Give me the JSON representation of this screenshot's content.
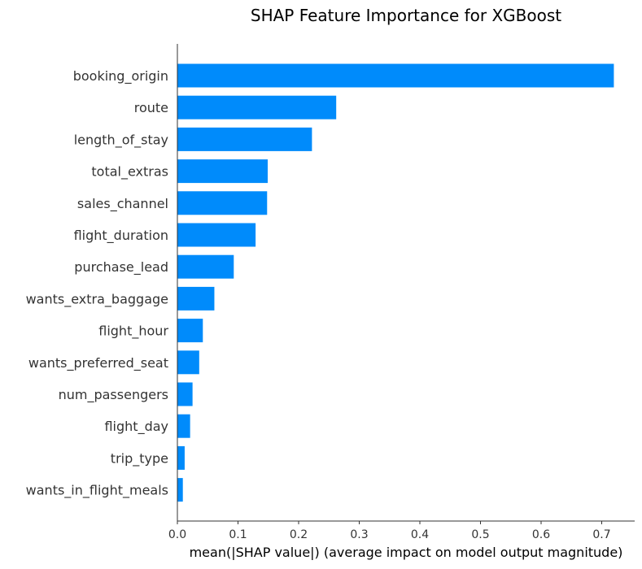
{
  "chart_data": {
    "type": "bar",
    "orientation": "horizontal",
    "title": "SHAP Feature Importance for XGBoost",
    "xlabel": "mean(|SHAP value|) (average impact on model output magnitude)",
    "ylabel": "",
    "xlim": [
      0,
      0.755
    ],
    "xticks": [
      "0.0",
      "0.1",
      "0.2",
      "0.3",
      "0.4",
      "0.5",
      "0.6",
      "0.7"
    ],
    "categories": [
      "booking_origin",
      "route",
      "length_of_stay",
      "total_extras",
      "sales_channel",
      "flight_duration",
      "purchase_lead",
      "wants_extra_baggage",
      "flight_hour",
      "wants_preferred_seat",
      "num_passengers",
      "flight_day",
      "trip_type",
      "wants_in_flight_meals"
    ],
    "values": [
      0.72,
      0.262,
      0.222,
      0.149,
      0.148,
      0.129,
      0.093,
      0.061,
      0.042,
      0.036,
      0.025,
      0.021,
      0.012,
      0.009
    ],
    "bar_color": "#008bfb",
    "grid": false,
    "legend": "none"
  }
}
